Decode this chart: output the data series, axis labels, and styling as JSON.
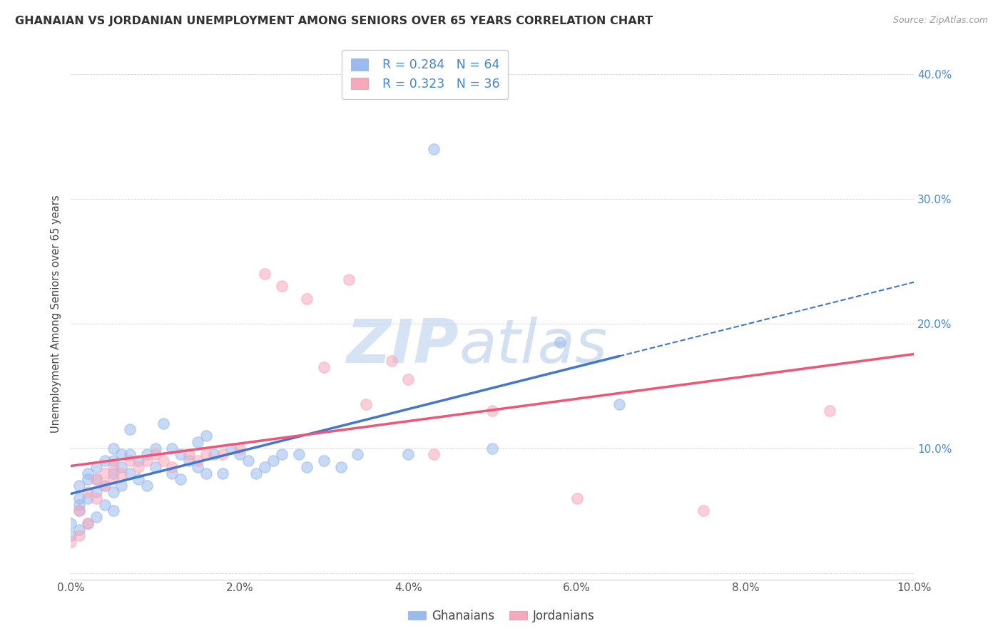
{
  "title": "GHANAIAN VS JORDANIAN UNEMPLOYMENT AMONG SENIORS OVER 65 YEARS CORRELATION CHART",
  "source": "Source: ZipAtlas.com",
  "ylabel": "Unemployment Among Seniors over 65 years",
  "xlim": [
    0.0,
    0.1
  ],
  "ylim": [
    -0.005,
    0.42
  ],
  "x_ticks": [
    0.0,
    0.02,
    0.04,
    0.06,
    0.08,
    0.1
  ],
  "y_ticks": [
    0.0,
    0.1,
    0.2,
    0.3,
    0.4
  ],
  "x_tick_labels": [
    "0.0%",
    "2.0%",
    "4.0%",
    "6.0%",
    "8.0%",
    "10.0%"
  ],
  "y_tick_labels_left": [
    "",
    "",
    "",
    "",
    ""
  ],
  "y_tick_labels_right": [
    "",
    "10.0%",
    "20.0%",
    "30.0%",
    "40.0%"
  ],
  "ghanaian_color": "#99bbee",
  "jordanian_color": "#f8a8bb",
  "ghanaian_line_color": "#4477cc",
  "jordanian_line_color": "#ee5577",
  "watermark_zip": "ZIP",
  "watermark_atlas": "atlas",
  "watermark_color_zip": "#ccddf5",
  "watermark_color_atlas": "#b8ccee",
  "legend_R_ghana": "R = 0.284",
  "legend_N_ghana": "N = 64",
  "legend_R_jordan": "R = 0.323",
  "legend_N_jordan": "N = 36",
  "legend_label_ghana": "Ghanaians",
  "legend_label_jordan": "Jordanians",
  "ghana_x": [
    0.0,
    0.0,
    0.001,
    0.001,
    0.001,
    0.001,
    0.001,
    0.002,
    0.002,
    0.002,
    0.002,
    0.003,
    0.003,
    0.003,
    0.003,
    0.004,
    0.004,
    0.004,
    0.005,
    0.005,
    0.005,
    0.005,
    0.005,
    0.006,
    0.006,
    0.006,
    0.007,
    0.007,
    0.007,
    0.008,
    0.008,
    0.009,
    0.009,
    0.01,
    0.01,
    0.011,
    0.012,
    0.012,
    0.013,
    0.013,
    0.014,
    0.015,
    0.015,
    0.016,
    0.016,
    0.017,
    0.018,
    0.019,
    0.02,
    0.021,
    0.022,
    0.023,
    0.024,
    0.025,
    0.027,
    0.028,
    0.03,
    0.032,
    0.034,
    0.04,
    0.043,
    0.05,
    0.058,
    0.065
  ],
  "ghana_y": [
    0.03,
    0.04,
    0.035,
    0.05,
    0.055,
    0.06,
    0.07,
    0.04,
    0.06,
    0.075,
    0.08,
    0.045,
    0.065,
    0.075,
    0.085,
    0.055,
    0.07,
    0.09,
    0.05,
    0.065,
    0.08,
    0.09,
    0.1,
    0.07,
    0.085,
    0.095,
    0.08,
    0.095,
    0.115,
    0.075,
    0.09,
    0.07,
    0.095,
    0.085,
    0.1,
    0.12,
    0.08,
    0.1,
    0.075,
    0.095,
    0.09,
    0.085,
    0.105,
    0.08,
    0.11,
    0.095,
    0.08,
    0.1,
    0.095,
    0.09,
    0.08,
    0.085,
    0.09,
    0.095,
    0.095,
    0.085,
    0.09,
    0.085,
    0.095,
    0.095,
    0.34,
    0.1,
    0.185,
    0.135
  ],
  "jordan_x": [
    0.0,
    0.001,
    0.001,
    0.002,
    0.002,
    0.003,
    0.003,
    0.004,
    0.004,
    0.005,
    0.005,
    0.006,
    0.007,
    0.008,
    0.009,
    0.01,
    0.011,
    0.012,
    0.014,
    0.015,
    0.016,
    0.018,
    0.02,
    0.023,
    0.025,
    0.028,
    0.03,
    0.033,
    0.035,
    0.038,
    0.04,
    0.043,
    0.05,
    0.06,
    0.075,
    0.09
  ],
  "jordan_y": [
    0.025,
    0.03,
    0.05,
    0.04,
    0.065,
    0.06,
    0.075,
    0.07,
    0.08,
    0.075,
    0.085,
    0.08,
    0.09,
    0.085,
    0.09,
    0.095,
    0.09,
    0.085,
    0.095,
    0.09,
    0.095,
    0.095,
    0.1,
    0.24,
    0.23,
    0.22,
    0.165,
    0.235,
    0.135,
    0.17,
    0.155,
    0.095,
    0.13,
    0.06,
    0.05,
    0.13
  ]
}
